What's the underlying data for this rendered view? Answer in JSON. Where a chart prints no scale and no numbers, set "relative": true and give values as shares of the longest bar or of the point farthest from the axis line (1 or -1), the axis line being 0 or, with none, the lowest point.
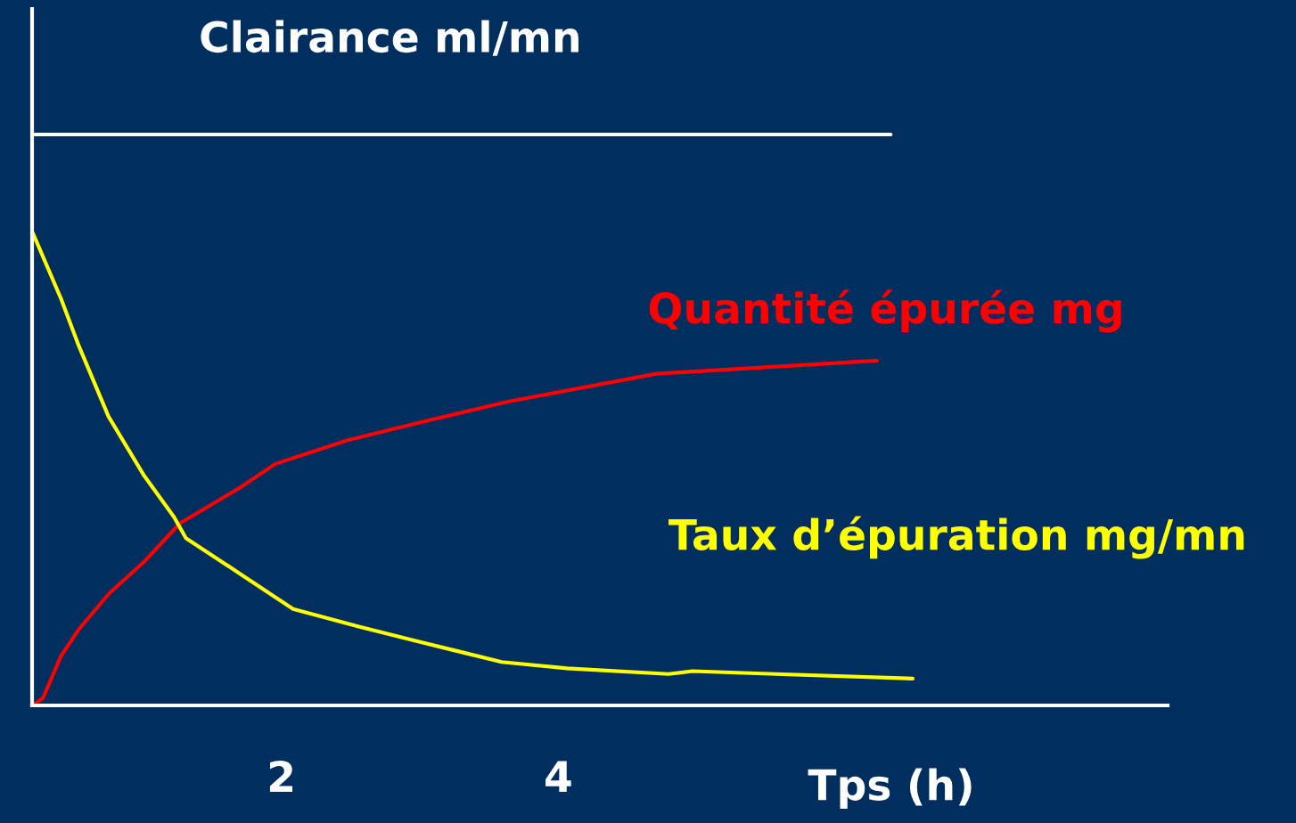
{
  "chart_data": {
    "type": "line",
    "relative": true,
    "xlabel": "Tps (h)",
    "xlim": [
      0.2,
      8.4
    ],
    "xticks": [
      2,
      4
    ],
    "grid": false,
    "legend": false,
    "marker": "none",
    "line_style": "solid",
    "series": [
      {
        "name": "Clairance ml/mn",
        "color": "#ffffff",
        "x": [
          0.206,
          6.4
        ],
        "values": [
          1,
          1
        ]
      },
      {
        "name": "Quantité épurée mg",
        "color": "#ff0000",
        "x": [
          0.206,
          0.279,
          0.408,
          0.537,
          0.752,
          1.01,
          1.268,
          1.699,
          1.956,
          2.473,
          2.989,
          3.634,
          4.709,
          6.301
        ],
        "values": [
          0,
          0.013,
          0.086,
          0.133,
          0.195,
          0.252,
          0.319,
          0.381,
          0.423,
          0.464,
          0.495,
          0.532,
          0.581,
          0.604
        ]
      },
      {
        "name": "Taux d’épuration mg/mn",
        "color": "#ffff00",
        "x": [
          0.206,
          0.408,
          0.537,
          0.752,
          1.01,
          1.225,
          1.311,
          1.699,
          2.085,
          2.559,
          2.989,
          3.591,
          4.064,
          4.795,
          4.968,
          5.569,
          6.559
        ],
        "values": [
          0.827,
          0.713,
          0.63,
          0.506,
          0.402,
          0.33,
          0.293,
          0.231,
          0.169,
          0.138,
          0.112,
          0.076,
          0.065,
          0.055,
          0.06,
          0.055,
          0.047
        ]
      }
    ]
  }
}
